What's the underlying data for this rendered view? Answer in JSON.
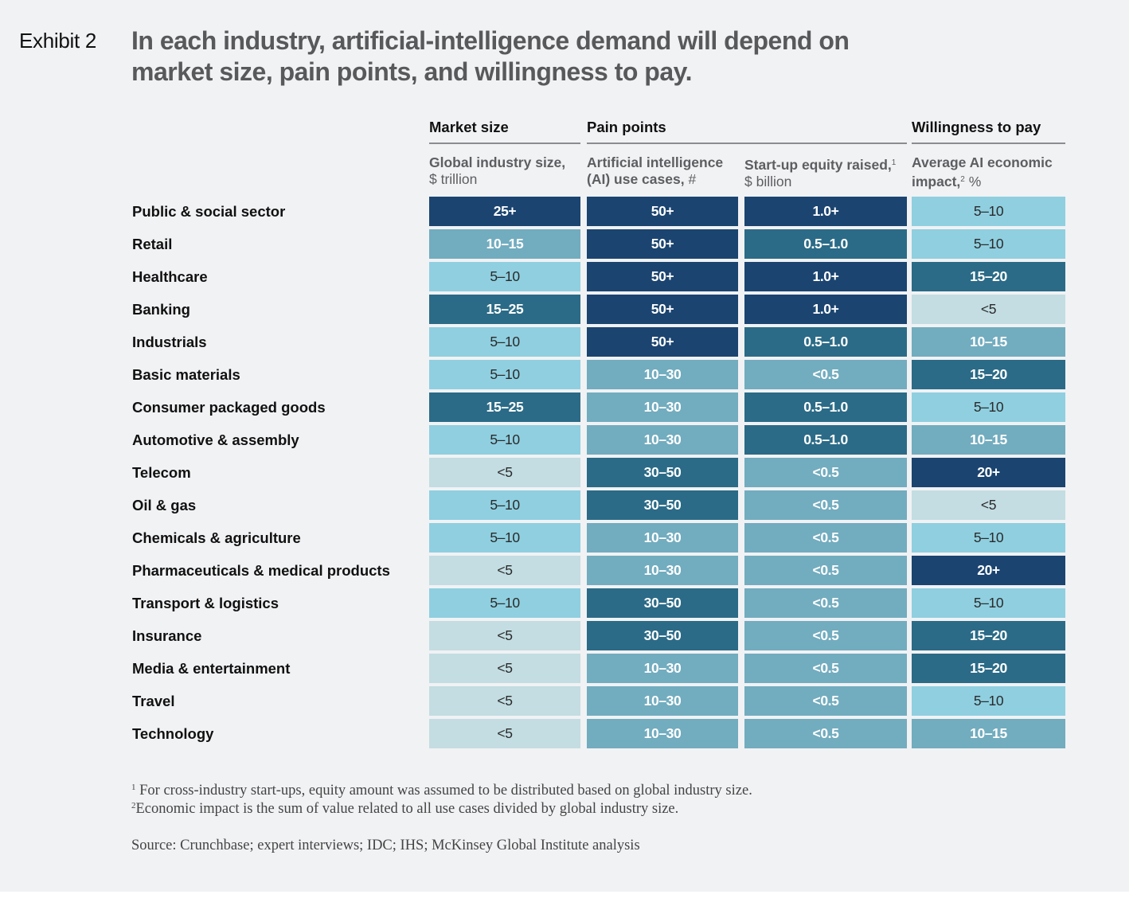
{
  "header": {
    "exhibit_label": "Exhibit 2",
    "title": "In each industry, artificial-intelligence demand will depend on market size, pain points, and willingness to pay."
  },
  "chart_data": {
    "type": "table",
    "groups": [
      "Market size",
      "Pain points",
      "Willingness to pay"
    ],
    "columns": [
      {
        "name": "Global industry size,",
        "unit": "$ trillion",
        "superscript": ""
      },
      {
        "name": "Artificial intelligence (AI) use cases,",
        "unit": "#",
        "superscript": ""
      },
      {
        "name": "Start-up equity raised,",
        "unit": "$ billion",
        "superscript": "1"
      },
      {
        "name": "Average AI economic impact,",
        "unit": "%",
        "superscript": "2"
      }
    ],
    "color_scale": {
      "1": "#c3dde2",
      "2": "#8fcfe0",
      "3": "#72acbf",
      "4": "#2b6b87",
      "5": "#1b4470"
    },
    "rows": [
      {
        "label": "Public & social sector",
        "values": [
          "25+",
          "50+",
          "1.0+",
          "5–10"
        ],
        "levels": [
          5,
          5,
          5,
          2
        ]
      },
      {
        "label": "Retail",
        "values": [
          "10–15",
          "50+",
          "0.5–1.0",
          "5–10"
        ],
        "levels": [
          3,
          5,
          4,
          2
        ]
      },
      {
        "label": "Healthcare",
        "values": [
          "5–10",
          "50+",
          "1.0+",
          "15–20"
        ],
        "levels": [
          2,
          5,
          5,
          4
        ]
      },
      {
        "label": "Banking",
        "values": [
          "15–25",
          "50+",
          "1.0+",
          "<5"
        ],
        "levels": [
          4,
          5,
          5,
          1
        ]
      },
      {
        "label": "Industrials",
        "values": [
          "5–10",
          "50+",
          "0.5–1.0",
          "10–15"
        ],
        "levels": [
          2,
          5,
          4,
          3
        ]
      },
      {
        "label": "Basic materials",
        "values": [
          "5–10",
          "10–30",
          "<0.5",
          "15–20"
        ],
        "levels": [
          2,
          3,
          3,
          4
        ]
      },
      {
        "label": "Consumer packaged goods",
        "values": [
          "15–25",
          "10–30",
          "0.5–1.0",
          "5–10"
        ],
        "levels": [
          4,
          3,
          4,
          2
        ]
      },
      {
        "label": "Automotive & assembly",
        "values": [
          "5–10",
          "10–30",
          "0.5–1.0",
          "10–15"
        ],
        "levels": [
          2,
          3,
          4,
          3
        ]
      },
      {
        "label": "Telecom",
        "values": [
          "<5",
          "30–50",
          "<0.5",
          "20+"
        ],
        "levels": [
          1,
          4,
          3,
          5
        ]
      },
      {
        "label": "Oil & gas",
        "values": [
          "5–10",
          "30–50",
          "<0.5",
          "<5"
        ],
        "levels": [
          2,
          4,
          3,
          1
        ]
      },
      {
        "label": "Chemicals & agriculture",
        "values": [
          "5–10",
          "10–30",
          "<0.5",
          "5–10"
        ],
        "levels": [
          2,
          3,
          3,
          2
        ]
      },
      {
        "label": "Pharmaceuticals & medical products",
        "values": [
          "<5",
          "10–30",
          "<0.5",
          "20+"
        ],
        "levels": [
          1,
          3,
          3,
          5
        ]
      },
      {
        "label": "Transport & logistics",
        "values": [
          "5–10",
          "30–50",
          "<0.5",
          "5–10"
        ],
        "levels": [
          2,
          4,
          3,
          2
        ]
      },
      {
        "label": "Insurance",
        "values": [
          "<5",
          "30–50",
          "<0.5",
          "15–20"
        ],
        "levels": [
          1,
          4,
          3,
          4
        ]
      },
      {
        "label": "Media & entertainment",
        "values": [
          "<5",
          "10–30",
          "<0.5",
          "15–20"
        ],
        "levels": [
          1,
          3,
          3,
          4
        ]
      },
      {
        "label": "Travel",
        "values": [
          "<5",
          "10–30",
          "<0.5",
          "5–10"
        ],
        "levels": [
          1,
          3,
          3,
          2
        ]
      },
      {
        "label": "Technology",
        "values": [
          "<5",
          "10–30",
          "<0.5",
          "10–15"
        ],
        "levels": [
          1,
          3,
          3,
          3
        ]
      }
    ]
  },
  "footnotes": {
    "note1_marker": "1",
    "note1_text": "For cross-industry start-ups, equity amount was assumed to be distributed based on global industry size.",
    "note2_marker": "2",
    "note2_text": "Economic impact is the sum of value related to all use cases divided by global industry size.",
    "source": "Source: Crunchbase; expert interviews; IDC; IHS; McKinsey Global Institute analysis"
  }
}
